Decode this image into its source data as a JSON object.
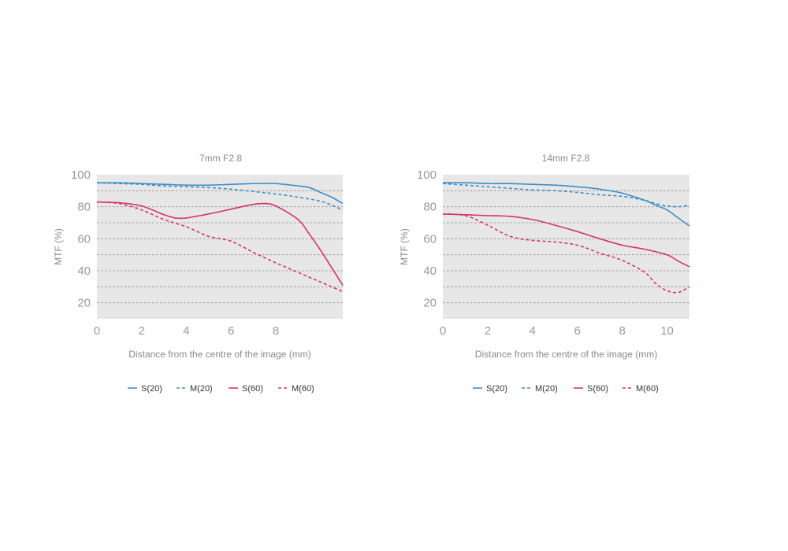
{
  "chart_data": [
    {
      "type": "line",
      "title": "7mm F2.8",
      "xlabel": "Distance from the centre of the image (mm)",
      "ylabel": "MTF (%)",
      "xlim": [
        0,
        11
      ],
      "ylim": [
        10,
        100
      ],
      "xticks": [
        0,
        2,
        4,
        6,
        8
      ],
      "yticks": [
        20,
        40,
        60,
        80,
        100
      ],
      "grid": "dashed horizontal every 10",
      "legend": "bottom",
      "series": [
        {
          "name": "S(20)",
          "style": "solid",
          "color": "#3b8fc7",
          "x": [
            0,
            1,
            2,
            3,
            4,
            5,
            6,
            7,
            7.5,
            8,
            9,
            9.5,
            10,
            10.5,
            11
          ],
          "y": [
            95,
            95,
            94.5,
            94,
            93.5,
            93.5,
            94,
            94.5,
            94.5,
            94.5,
            93,
            92,
            89,
            86,
            82
          ]
        },
        {
          "name": "M(20)",
          "style": "dashed",
          "color": "#3b8fc7",
          "x": [
            0,
            1,
            2,
            3,
            4,
            5,
            6,
            7,
            8,
            9,
            10,
            10.5,
            11
          ],
          "y": [
            95,
            94.5,
            94,
            93,
            92.5,
            92,
            91,
            89.5,
            88,
            86,
            83.5,
            81,
            78
          ]
        },
        {
          "name": "S(60)",
          "style": "solid",
          "color": "#d6336c",
          "x": [
            0,
            1,
            2,
            3,
            3.5,
            4,
            5,
            6,
            7,
            7.5,
            8,
            9,
            9.5,
            10,
            10.5,
            11
          ],
          "y": [
            83,
            82.5,
            80.5,
            75,
            73,
            73,
            75.5,
            78.5,
            81.5,
            82,
            80.5,
            72,
            63,
            53,
            42,
            31
          ]
        },
        {
          "name": "M(60)",
          "style": "dashed",
          "color": "#d6336c",
          "x": [
            0,
            1,
            2,
            3,
            4,
            5,
            6,
            7,
            8,
            9,
            10,
            11
          ],
          "y": [
            83,
            82,
            78,
            72,
            67.5,
            61.5,
            58.5,
            51.5,
            45,
            39,
            33,
            27
          ]
        }
      ]
    },
    {
      "type": "line",
      "title": "14mm F2.8",
      "xlabel": "Distance from the centre of the image (mm)",
      "ylabel": "MTF (%)",
      "xlim": [
        0,
        11
      ],
      "ylim": [
        10,
        100
      ],
      "xticks": [
        0,
        2,
        4,
        6,
        8,
        10
      ],
      "yticks": [
        20,
        40,
        60,
        80,
        100
      ],
      "grid": "dashed horizontal every 10",
      "legend": "bottom",
      "series": [
        {
          "name": "S(20)",
          "style": "solid",
          "color": "#3b8fc7",
          "x": [
            0,
            1,
            2,
            3,
            4,
            5,
            6,
            7,
            8,
            9,
            9.5,
            10,
            10.5,
            11
          ],
          "y": [
            95,
            95,
            94.5,
            94.5,
            94,
            93.5,
            92.5,
            91,
            88.5,
            84,
            81,
            78,
            73,
            68
          ]
        },
        {
          "name": "M(20)",
          "style": "dashed",
          "color": "#3b8fc7",
          "x": [
            0,
            1,
            2,
            3,
            4,
            5,
            6,
            7,
            8,
            9,
            9.5,
            10,
            10.5,
            11
          ],
          "y": [
            94.5,
            93.5,
            92.5,
            91.5,
            90.5,
            90,
            89,
            87.5,
            86.5,
            84,
            82,
            80.5,
            80,
            81
          ]
        },
        {
          "name": "S(60)",
          "style": "solid",
          "color": "#d6336c",
          "x": [
            0,
            1,
            2,
            3,
            4,
            5,
            6,
            7,
            8,
            9,
            10,
            10.5,
            11
          ],
          "y": [
            75.5,
            75,
            74.5,
            74,
            72,
            68.5,
            64.5,
            60,
            56,
            53.5,
            50,
            46,
            42.5
          ]
        },
        {
          "name": "M(60)",
          "style": "dashed",
          "color": "#d6336c",
          "x": [
            0,
            1,
            2,
            3,
            4,
            5,
            6,
            7,
            8,
            9,
            9.5,
            10,
            10.5,
            11
          ],
          "y": [
            75.5,
            74.5,
            68.5,
            61.5,
            59,
            58,
            56,
            51,
            46.5,
            39,
            32,
            27.5,
            26.5,
            30
          ]
        }
      ]
    }
  ]
}
